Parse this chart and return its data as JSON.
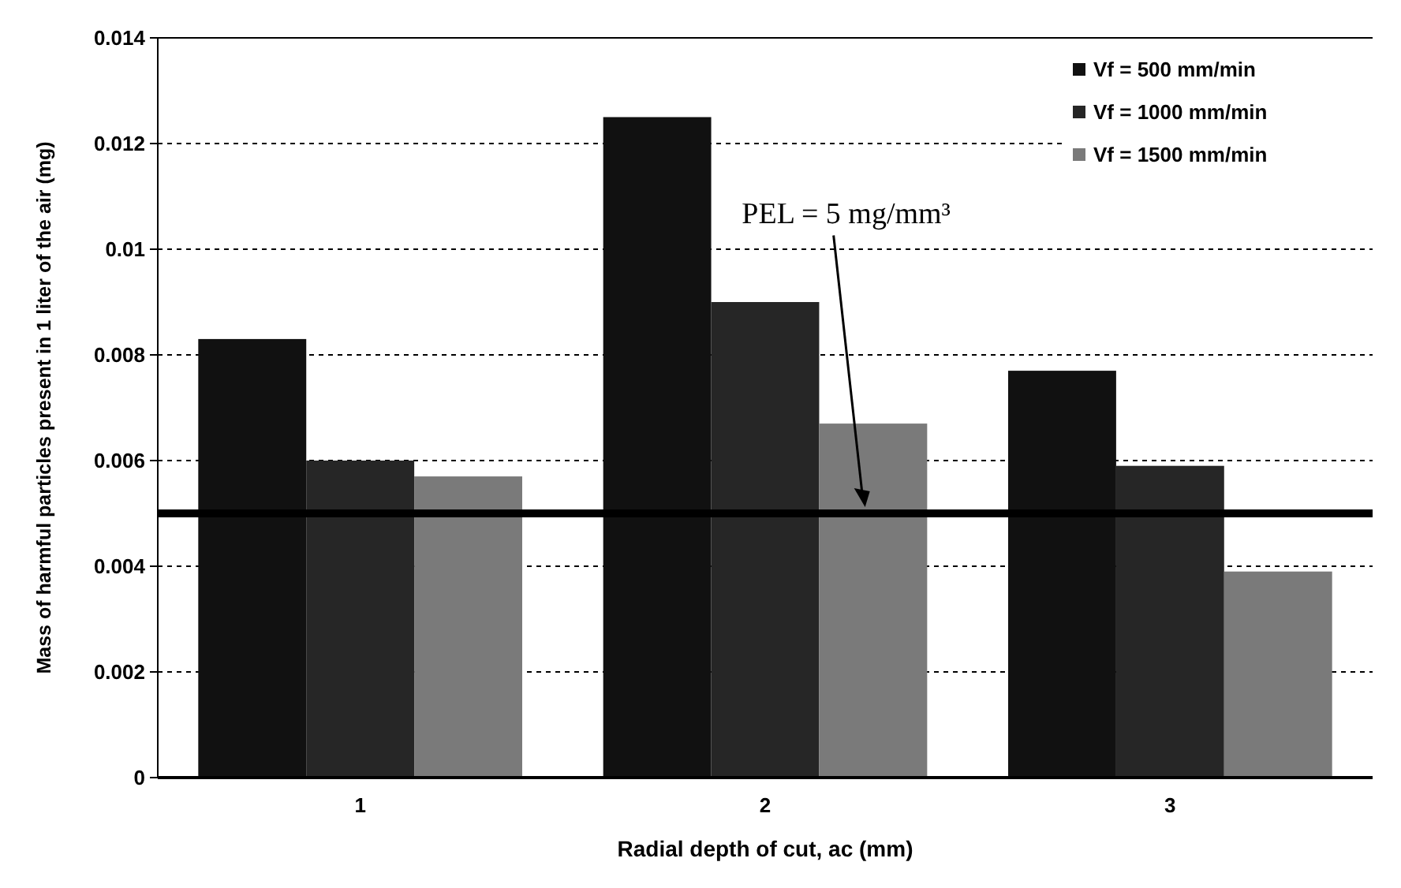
{
  "chart_data": {
    "type": "bar",
    "xlabel": "Radial depth of cut, ac (mm)",
    "ylabel": "Mass of harmful particles present in 1 liter of the air (mg)",
    "categories": [
      "1",
      "2",
      "3"
    ],
    "series": [
      {
        "name": "Vf = 500 mm/min",
        "color": "#111111",
        "values": [
          0.0083,
          0.0125,
          0.0077
        ]
      },
      {
        "name": "Vf = 1000 mm/min",
        "color": "#262626",
        "values": [
          0.006,
          0.009,
          0.0059
        ]
      },
      {
        "name": "Vf = 1500 mm/min",
        "color": "#7a7a7a",
        "values": [
          0.0057,
          0.0067,
          0.0039
        ]
      }
    ],
    "ylim": [
      0,
      0.014
    ],
    "yticks": [
      0,
      0.002,
      0.004,
      0.006,
      0.008,
      0.01,
      0.012,
      0.014
    ],
    "grid": "y",
    "legend": "top right",
    "annotations": [
      "PEL = 5 mg/mm³"
    ],
    "ref_lines": [
      {
        "axis": "y",
        "value": 0.005,
        "color": "#000000"
      }
    ]
  }
}
